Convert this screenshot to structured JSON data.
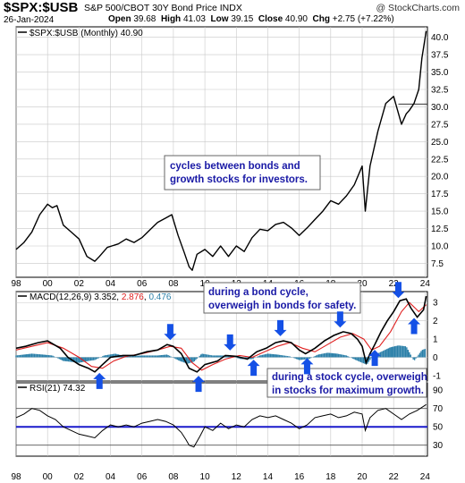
{
  "header": {
    "symbol": "$SPX:$USB",
    "description": "S&P 500/CBOT 30Y Bond Price INDX",
    "source": "@ StockCharts.com",
    "date": "26-Jan-2024",
    "open_label": "Open",
    "open": "39.68",
    "high_label": "High",
    "high": "41.03",
    "low_label": "Low",
    "low": "39.15",
    "close_label": "Close",
    "close": "40.90",
    "chg_label": "Chg",
    "chg": "+2.75 (+7.22%)"
  },
  "colors": {
    "price": "#000000",
    "macd": "#000000",
    "signal": "#e02020",
    "histogram": "#2a7fa8",
    "annotation_text": "#1a1aa6",
    "arrow": "#1450e6",
    "rsi_mid_line": "#1a1acc",
    "grid": "#c8c8c8"
  },
  "chart_data": [
    {
      "type": "line",
      "legend": "$SPX:$USB (Monthly) 40.90",
      "y_ticks": [
        "7.5",
        "10.0",
        "12.5",
        "15.0",
        "17.5",
        "20.0",
        "22.5",
        "25.0",
        "27.5",
        "30.0",
        "32.5",
        "35.0",
        "37.5",
        "40.0"
      ],
      "ylim": [
        5.5,
        41.5
      ],
      "reference_level": 30.4,
      "last_value": 40.9,
      "x": [
        1998.0,
        1998.5,
        1999.0,
        1999.5,
        2000.0,
        2000.3,
        2000.6,
        2001.0,
        2001.5,
        2002.0,
        2002.5,
        2003.0,
        2003.3,
        2003.8,
        2004.5,
        2005.0,
        2005.5,
        2006.0,
        2006.5,
        2007.0,
        2007.5,
        2007.9,
        2008.3,
        2008.7,
        2009.0,
        2009.2,
        2009.5,
        2010.0,
        2010.5,
        2011.0,
        2011.5,
        2012.0,
        2012.5,
        2013.0,
        2013.5,
        2014.0,
        2014.5,
        2015.0,
        2015.5,
        2016.0,
        2016.5,
        2017.0,
        2017.5,
        2018.0,
        2018.5,
        2019.0,
        2019.5,
        2020.0,
        2020.2,
        2020.5,
        2021.0,
        2021.5,
        2022.0,
        2022.5,
        2022.8,
        2023.0,
        2023.3,
        2023.6,
        2023.8,
        2024.07
      ],
      "y": [
        9.5,
        10.5,
        12.0,
        14.5,
        16.0,
        15.5,
        15.8,
        13.0,
        12.0,
        11.0,
        8.5,
        7.8,
        8.5,
        9.8,
        10.3,
        11.0,
        10.5,
        11.2,
        12.3,
        13.4,
        14.0,
        14.5,
        11.5,
        9.0,
        7.0,
        6.5,
        8.8,
        9.5,
        8.5,
        10.0,
        8.5,
        10.0,
        9.2,
        11.2,
        12.4,
        12.2,
        13.1,
        13.4,
        12.6,
        11.5,
        12.6,
        13.8,
        15.0,
        16.5,
        16.0,
        17.2,
        18.8,
        21.5,
        15.0,
        21.5,
        26.5,
        30.5,
        31.5,
        27.5,
        29.0,
        29.5,
        30.5,
        32.5,
        37.0,
        40.9
      ]
    },
    {
      "type": "line",
      "legend_label": "MACD(12,26,9)",
      "macd_value": "3.352",
      "signal_value": "2.876",
      "histogram_value": "0.476",
      "y_ticks": [
        "-1",
        "0",
        "1",
        "2",
        "3"
      ],
      "ylim": [
        -1.3,
        3.6
      ],
      "series": [
        {
          "x": [
            1998.0,
            1998.6,
            1999.4,
            2000.0,
            2000.8,
            2001.3,
            2002.0,
            2002.6,
            2003.0,
            2003.5,
            2004.0,
            2004.8,
            2005.5,
            2006.3,
            2007.0,
            2007.6,
            2008.0,
            2008.5,
            2009.0,
            2009.5,
            2010.0,
            2010.8,
            2011.3,
            2012.0,
            2012.7,
            2013.3,
            2013.9,
            2014.5,
            2015.0,
            2015.5,
            2016.0,
            2016.4,
            2017.0,
            2017.6,
            2018.2,
            2018.8,
            2019.3,
            2019.7,
            2020.0,
            2020.25,
            2020.5,
            2020.8,
            2021.2,
            2021.6,
            2022.0,
            2022.4,
            2022.8,
            2023.1,
            2023.5,
            2023.9,
            2024.07
          ],
          "y": [
            0.5,
            0.6,
            0.8,
            0.9,
            0.5,
            0.0,
            -0.4,
            -0.6,
            -0.8,
            -0.4,
            0.0,
            0.1,
            0.1,
            0.3,
            0.4,
            0.7,
            0.6,
            0.2,
            -0.6,
            -0.8,
            -0.4,
            -0.2,
            0.1,
            0.05,
            -0.1,
            0.3,
            0.5,
            0.8,
            0.9,
            0.8,
            0.4,
            0.2,
            0.5,
            0.9,
            1.2,
            1.4,
            1.3,
            1.0,
            0.6,
            -0.3,
            0.2,
            0.7,
            1.4,
            2.0,
            2.5,
            3.1,
            3.2,
            2.7,
            2.2,
            2.6,
            3.35
          ]
        },
        {
          "x": [
            1998.0,
            1999.0,
            2000.0,
            2001.0,
            2002.0,
            2002.8,
            2003.5,
            2004.2,
            2005.0,
            2006.0,
            2007.0,
            2007.8,
            2008.5,
            2009.2,
            2009.8,
            2010.5,
            2011.3,
            2012.2,
            2013.0,
            2013.8,
            2014.6,
            2015.4,
            2016.2,
            2017.0,
            2017.8,
            2018.6,
            2019.4,
            2020.1,
            2020.6,
            2021.1,
            2021.8,
            2022.5,
            2023.0,
            2023.6,
            2024.07
          ],
          "y": [
            0.4,
            0.6,
            0.8,
            0.5,
            0.0,
            -0.5,
            -0.6,
            -0.2,
            0.05,
            0.2,
            0.4,
            0.6,
            0.5,
            -0.3,
            -0.7,
            -0.4,
            -0.1,
            0.1,
            0.0,
            0.3,
            0.6,
            0.8,
            0.5,
            0.3,
            0.7,
            1.1,
            1.3,
            1.0,
            0.4,
            0.6,
            1.4,
            2.5,
            3.0,
            2.5,
            2.88
          ]
        }
      ],
      "histogram": {
        "x": [
          1998.0,
          1999.0,
          1999.7,
          2000.3,
          2001.0,
          2002.0,
          2002.6,
          2003.0,
          2003.6,
          2004.3,
          2005.0,
          2006.0,
          2007.0,
          2007.6,
          2008.4,
          2008.9,
          2009.3,
          2009.8,
          2010.5,
          2011.5,
          2012.3,
          2013.0,
          2013.5,
          2014.0,
          2014.6,
          2015.4,
          2016.0,
          2016.6,
          2017.2,
          2017.8,
          2018.4,
          2019.0,
          2019.6,
          2020.0,
          2020.3,
          2020.7,
          2021.2,
          2021.8,
          2022.3,
          2022.8,
          2023.3,
          2023.8,
          2024.07
        ],
        "y": [
          0.1,
          0.2,
          0.15,
          0.1,
          -0.2,
          -0.3,
          -0.2,
          -0.15,
          0.1,
          0.2,
          0.05,
          0.1,
          0.1,
          0.15,
          -0.2,
          -0.35,
          -0.25,
          0.2,
          0.1,
          0.1,
          -0.1,
          -0.1,
          0.1,
          0.2,
          0.15,
          0.05,
          -0.15,
          -0.1,
          0.15,
          0.25,
          0.2,
          0.1,
          -0.15,
          -0.3,
          -0.4,
          0.1,
          0.3,
          0.55,
          0.65,
          0.6,
          -0.2,
          0.4,
          0.48
        ]
      }
    },
    {
      "type": "line",
      "legend_label": "RSI(21)",
      "rsi_value": "74.32",
      "y_ticks": [
        "30",
        "50",
        "70",
        "90"
      ],
      "ylim": [
        18,
        98
      ],
      "reference_levels": [
        30,
        50,
        70
      ],
      "x": [
        1998.0,
        1998.5,
        1999.0,
        1999.5,
        2000.0,
        2000.5,
        2001.0,
        2001.5,
        2002.0,
        2002.5,
        2003.0,
        2003.5,
        2004.0,
        2004.5,
        2005.0,
        2005.5,
        2006.0,
        2006.5,
        2007.0,
        2007.5,
        2008.0,
        2008.5,
        2008.8,
        2009.0,
        2009.3,
        2009.7,
        2010.0,
        2010.5,
        2011.0,
        2011.5,
        2012.0,
        2012.5,
        2013.0,
        2013.5,
        2014.0,
        2014.5,
        2015.0,
        2015.5,
        2016.0,
        2016.5,
        2017.0,
        2017.5,
        2018.0,
        2018.5,
        2019.0,
        2019.5,
        2020.0,
        2020.2,
        2020.5,
        2021.0,
        2021.5,
        2022.0,
        2022.5,
        2023.0,
        2023.5,
        2024.07
      ],
      "y": [
        60,
        64,
        70,
        68,
        62,
        58,
        50,
        46,
        42,
        40,
        38,
        46,
        52,
        50,
        52,
        50,
        54,
        56,
        58,
        56,
        52,
        44,
        36,
        30,
        28,
        40,
        50,
        46,
        54,
        48,
        52,
        50,
        58,
        62,
        60,
        62,
        58,
        54,
        48,
        52,
        60,
        62,
        64,
        60,
        62,
        66,
        64,
        46,
        60,
        68,
        70,
        64,
        58,
        64,
        68,
        74.32
      ]
    }
  ],
  "x_axis": {
    "tick_labels": [
      "98",
      "00",
      "02",
      "04",
      "06",
      "08",
      "10",
      "12",
      "14",
      "16",
      "18",
      "20",
      "22",
      "24"
    ],
    "tick_years": [
      1998,
      2000,
      2002,
      2004,
      2006,
      2008,
      2010,
      2012,
      2014,
      2016,
      2018,
      2020,
      2022,
      2024
    ]
  },
  "annotations": {
    "cycles": "cycles between bonds and growth stocks for investors.",
    "bond_cycle": "during a bond cycle, overweigh in bonds for safety.",
    "stock_cycle": "during a stock cycle, overweigh in stocks for maximum growth."
  },
  "arrows": {
    "down_years": [
      2007.8,
      2011.6,
      2014.8,
      2018.6,
      2022.3
    ],
    "up_years": [
      2003.3,
      2009.6,
      2013.1,
      2016.5,
      2020.8,
      2023.3
    ]
  }
}
